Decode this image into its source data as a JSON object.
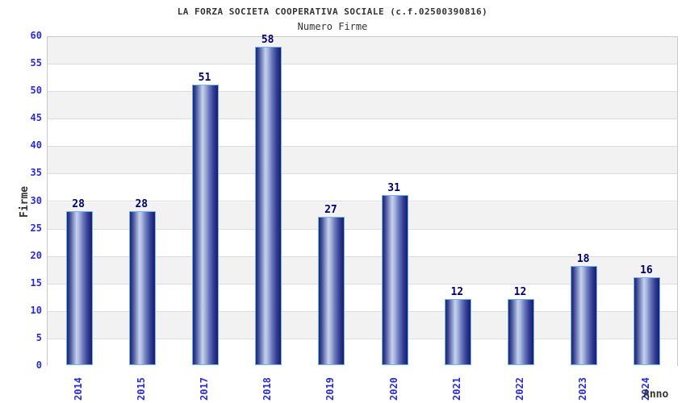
{
  "chart_data": {
    "type": "bar",
    "title": "LA FORZA SOCIETA COOPERATIVA SOCIALE (c.f.02500390816)",
    "subtitle": "Numero Firme",
    "xlabel": "Anno",
    "ylabel": "Firme",
    "categories": [
      "2014",
      "2015",
      "2017",
      "2018",
      "2019",
      "2020",
      "2021",
      "2022",
      "2023",
      "2024"
    ],
    "values": [
      28,
      28,
      51,
      58,
      27,
      31,
      12,
      12,
      18,
      16
    ],
    "ylim": [
      0,
      60
    ],
    "ytick_step": 5,
    "grid": "horizontal",
    "band_fill": "alternating",
    "legend_position": "none",
    "colors": {
      "tick_label": "#2b2bd5",
      "value_label": "#00006a",
      "title_text": "#333333",
      "bar_dark": "#1d2473",
      "bar_light": "#c7d0ec",
      "bar_border": "#6fb4ea",
      "band_gray": "#f2f2f2",
      "band_white": "#ffffff",
      "gridline": "#dcdcdc",
      "plot_border": "#c9c9c9"
    }
  }
}
